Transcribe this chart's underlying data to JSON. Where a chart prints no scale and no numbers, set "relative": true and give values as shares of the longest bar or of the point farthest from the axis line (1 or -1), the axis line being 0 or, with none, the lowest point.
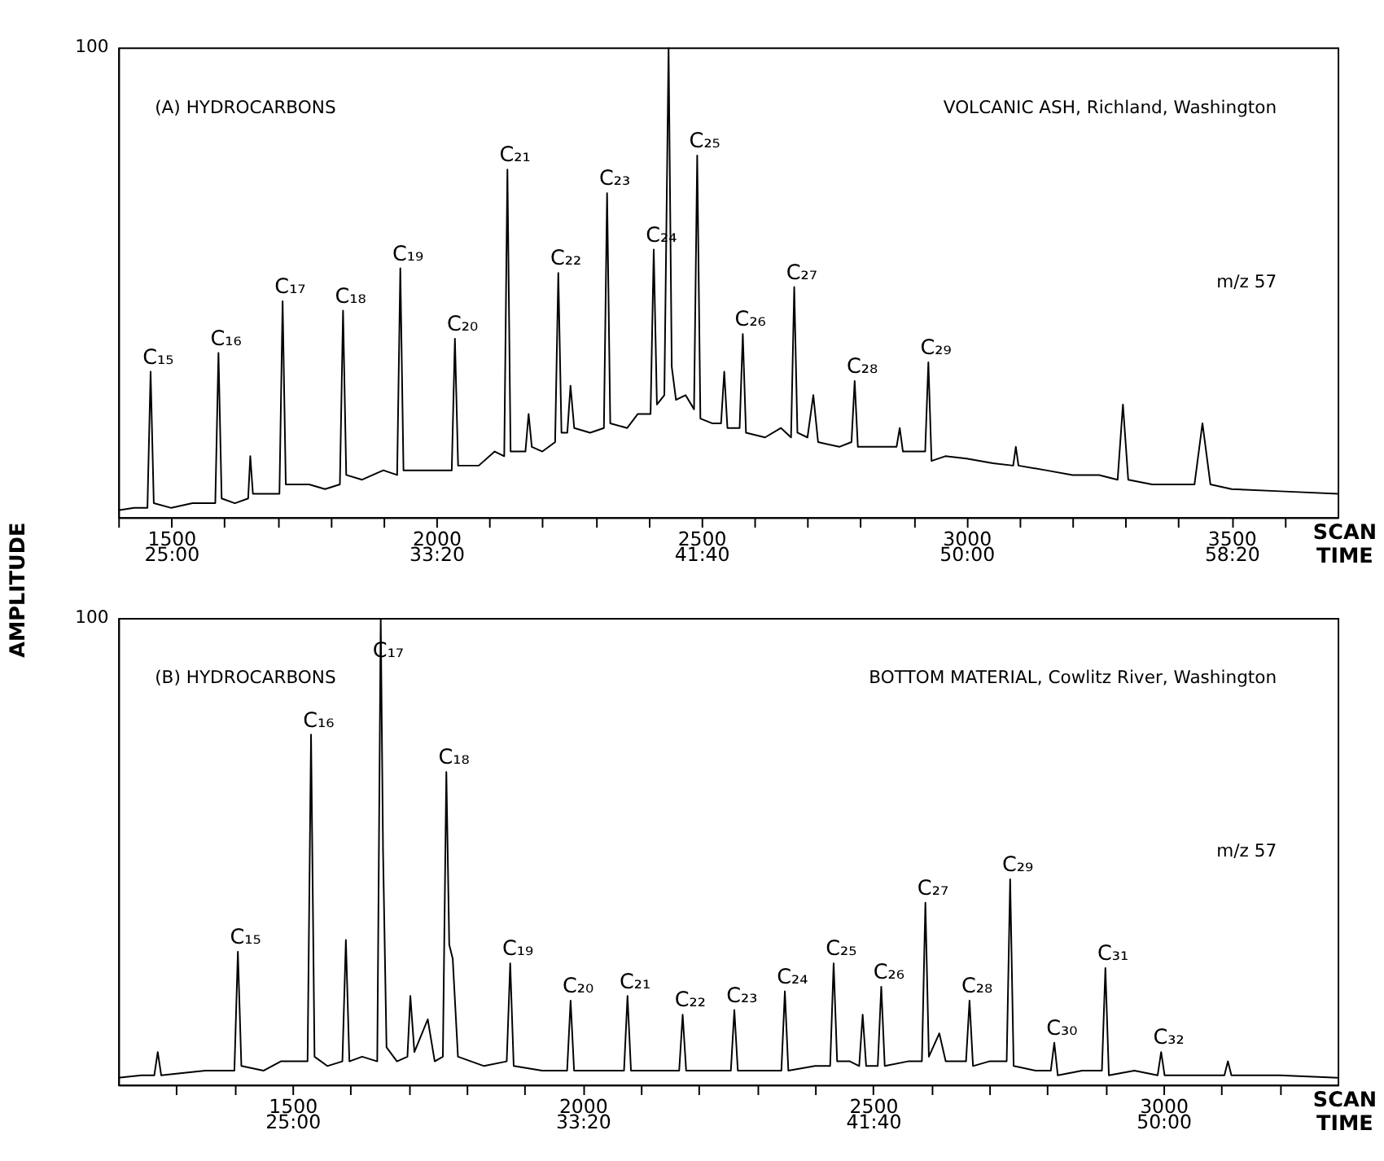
{
  "chart_data": [
    {
      "type": "line",
      "relative": true,
      "ylabel": "AMPLITUDE",
      "xlabel": "SCAN",
      "x2label": "TIME",
      "xlim": [
        1400,
        3700
      ],
      "x2lim": [
        1400,
        3700
      ],
      "xticks": [
        {
          "value": 1400,
          "label": null
        },
        1500,
        {
          "value": 1600,
          "label": null
        },
        {
          "value": 1700,
          "label": null
        },
        {
          "value": 1800,
          "label": null
        },
        {
          "value": 1900,
          "label": null
        },
        2000,
        {
          "value": 2100,
          "label": null
        },
        {
          "value": 2200,
          "label": null
        },
        {
          "value": 2300,
          "label": null
        },
        {
          "value": 2400,
          "label": null
        },
        2500,
        {
          "value": 2600,
          "label": null
        },
        {
          "value": 2700,
          "label": null
        },
        {
          "value": 2800,
          "label": null
        },
        {
          "value": 2900,
          "label": null
        },
        3000,
        {
          "value": 3100,
          "label": null
        },
        {
          "value": 3200,
          "label": null
        },
        {
          "value": 3300,
          "label": null
        },
        {
          "value": 3400,
          "label": null
        },
        3500,
        {
          "value": 3600,
          "label": null
        }
      ],
      "x2ticks": [
        {
          "value": 1500,
          "label": "25:00"
        },
        {
          "value": 2000,
          "label": "33:20"
        },
        {
          "value": 2500,
          "label": "41:40"
        },
        {
          "value": 3000,
          "label": "50:00"
        },
        {
          "value": 3500,
          "label": "58:20"
        }
      ],
      "series": [
        {
          "color": "#000000",
          "x": [
            1400,
            1430,
            1455,
            1461,
            1467,
            1500,
            1540,
            1583,
            1589,
            1595,
            1620,
            1645,
            1649,
            1654,
            1680,
            1704,
            1710,
            1716,
            1760,
            1790,
            1818,
            1824,
            1830,
            1860,
            1900,
            1926,
            1932,
            1938,
            1980,
            2029,
            2035,
            2041,
            2080,
            2110,
            2128,
            2134,
            2140,
            2168,
            2174,
            2180,
            2200,
            2224,
            2230,
            2236,
            2247,
            2253,
            2260,
            2290,
            2316,
            2322,
            2328,
            2360,
            2380,
            2404,
            2410,
            2416,
            2430,
            2438,
            2444,
            2452,
            2470,
            2486,
            2492,
            2498,
            2520,
            2537,
            2543,
            2549,
            2572,
            2578,
            2584,
            2620,
            2650,
            2669,
            2675,
            2681,
            2700,
            2711,
            2720,
            2760,
            2783,
            2789,
            2795,
            2840,
            2868,
            2874,
            2880,
            2922,
            2928,
            2934,
            2960,
            3000,
            3050,
            3088,
            3093,
            3098,
            3150,
            3200,
            3250,
            3285,
            3295,
            3305,
            3350,
            3380,
            3430,
            3445,
            3460,
            3500,
            3600,
            3700
          ],
          "values": [
            0.015,
            0.02,
            0.02,
            0.31,
            0.03,
            0.02,
            0.03,
            0.03,
            0.35,
            0.04,
            0.03,
            0.04,
            0.13,
            0.05,
            0.05,
            0.05,
            0.46,
            0.07,
            0.07,
            0.06,
            0.07,
            0.44,
            0.09,
            0.08,
            0.1,
            0.09,
            0.53,
            0.1,
            0.1,
            0.1,
            0.38,
            0.11,
            0.11,
            0.14,
            0.13,
            0.74,
            0.14,
            0.14,
            0.22,
            0.15,
            0.14,
            0.16,
            0.52,
            0.18,
            0.18,
            0.28,
            0.19,
            0.18,
            0.19,
            0.69,
            0.2,
            0.19,
            0.22,
            0.22,
            0.57,
            0.24,
            0.26,
            1.0,
            0.32,
            0.25,
            0.26,
            0.23,
            0.77,
            0.21,
            0.2,
            0.2,
            0.31,
            0.19,
            0.19,
            0.39,
            0.18,
            0.17,
            0.19,
            0.17,
            0.49,
            0.18,
            0.17,
            0.26,
            0.16,
            0.15,
            0.16,
            0.29,
            0.15,
            0.15,
            0.15,
            0.19,
            0.14,
            0.14,
            0.33,
            0.12,
            0.13,
            0.125,
            0.115,
            0.11,
            0.15,
            0.11,
            0.1,
            0.09,
            0.09,
            0.08,
            0.24,
            0.08,
            0.07,
            0.07,
            0.07,
            0.2,
            0.07,
            0.06,
            0.055,
            0.05
          ]
        }
      ],
      "annotations": [
        "(A) HYDROCARBONS",
        "VOLCANIC ASH, Richland, Washington",
        "m/z 57",
        "100",
        {
          "text": "C₁₅",
          "x": 1461,
          "y": 0.31
        },
        {
          "text": "C₁₆",
          "x": 1589,
          "y": 0.35
        },
        {
          "text": "C₁₇",
          "x": 1710,
          "y": 0.46
        },
        {
          "text": "C₁₈",
          "x": 1824,
          "y": 0.44
        },
        {
          "text": "C₁₉",
          "x": 1932,
          "y": 0.53
        },
        {
          "text": "C₂₀",
          "x": 2035,
          "y": 0.38
        },
        {
          "text": "C₂₁",
          "x": 2134,
          "y": 0.74
        },
        {
          "text": "C₂₂",
          "x": 2230,
          "y": 0.52
        },
        {
          "text": "C₂₃",
          "x": 2322,
          "y": 0.69
        },
        {
          "text": "C₂₄",
          "x": 2410,
          "y": 0.57
        },
        {
          "text": "C₂₅",
          "x": 2492,
          "y": 0.77
        },
        {
          "text": "C₂₆",
          "x": 2578,
          "y": 0.39
        },
        {
          "text": "C₂₇",
          "x": 2675,
          "y": 0.49
        },
        {
          "text": "C₂₈",
          "x": 2789,
          "y": 0.29
        },
        {
          "text": "C₂₉",
          "x": 2928,
          "y": 0.33
        }
      ]
    },
    {
      "type": "line",
      "relative": true,
      "xlabel": "SCAN",
      "x2label": "TIME",
      "xlim": [
        1200,
        3300
      ],
      "x2lim": [
        1200,
        3300
      ],
      "xticks": [
        {
          "value": 1300,
          "label": null
        },
        {
          "value": 1400,
          "label": null
        },
        1500,
        {
          "value": 1600,
          "label": null
        },
        {
          "value": 1700,
          "label": null
        },
        {
          "value": 1800,
          "label": null
        },
        {
          "value": 1900,
          "label": null
        },
        2000,
        {
          "value": 2100,
          "label": null
        },
        {
          "value": 2200,
          "label": null
        },
        {
          "value": 2300,
          "label": null
        },
        {
          "value": 2400,
          "label": null
        },
        2500,
        {
          "value": 2600,
          "label": null
        },
        {
          "value": 2700,
          "label": null
        },
        {
          "value": 2800,
          "label": null
        },
        {
          "value": 2900,
          "label": null
        },
        3000,
        {
          "value": 3100,
          "label": null
        },
        {
          "value": 3200,
          "label": null
        }
      ],
      "x2ticks": [
        {
          "value": 1500,
          "label": "25:00"
        },
        {
          "value": 2000,
          "label": "33:20"
        },
        {
          "value": 2500,
          "label": "41:40"
        },
        {
          "value": 3000,
          "label": "50:00"
        }
      ],
      "series": [
        {
          "color": "#000000",
          "x": [
            1200,
            1240,
            1262,
            1268,
            1274,
            1310,
            1350,
            1400,
            1406,
            1412,
            1450,
            1480,
            1526,
            1532,
            1538,
            1560,
            1586,
            1592,
            1598,
            1620,
            1646,
            1652,
            1656,
            1662,
            1680,
            1698,
            1703,
            1710,
            1733,
            1745,
            1759,
            1765,
            1770,
            1776,
            1785,
            1830,
            1869,
            1875,
            1881,
            1930,
            1973,
            1979,
            1985,
            2030,
            2071,
            2077,
            2083,
            2120,
            2166,
            2172,
            2178,
            2220,
            2255,
            2261,
            2267,
            2300,
            2342,
            2348,
            2354,
            2400,
            2426,
            2432,
            2438,
            2460,
            2476,
            2482,
            2488,
            2508,
            2514,
            2520,
            2560,
            2584,
            2590,
            2596,
            2614,
            2625,
            2660,
            2666,
            2672,
            2700,
            2730,
            2736,
            2742,
            2780,
            2806,
            2812,
            2818,
            2860,
            2894,
            2900,
            2906,
            2950,
            2990,
            2996,
            3002,
            3060,
            3105,
            3111,
            3117,
            3200,
            3300
          ],
          "values": [
            0.015,
            0.02,
            0.02,
            0.07,
            0.02,
            0.025,
            0.03,
            0.03,
            0.285,
            0.04,
            0.03,
            0.05,
            0.05,
            0.75,
            0.06,
            0.04,
            0.05,
            0.31,
            0.05,
            0.06,
            0.05,
            1.0,
            0.5,
            0.08,
            0.05,
            0.06,
            0.19,
            0.07,
            0.14,
            0.05,
            0.06,
            0.67,
            0.3,
            0.27,
            0.06,
            0.04,
            0.05,
            0.26,
            0.04,
            0.03,
            0.03,
            0.18,
            0.03,
            0.03,
            0.03,
            0.19,
            0.03,
            0.03,
            0.03,
            0.15,
            0.03,
            0.03,
            0.03,
            0.16,
            0.03,
            0.03,
            0.03,
            0.2,
            0.03,
            0.04,
            0.04,
            0.26,
            0.05,
            0.05,
            0.04,
            0.15,
            0.04,
            0.04,
            0.21,
            0.04,
            0.05,
            0.05,
            0.39,
            0.06,
            0.11,
            0.05,
            0.05,
            0.18,
            0.04,
            0.05,
            0.05,
            0.44,
            0.04,
            0.03,
            0.03,
            0.09,
            0.02,
            0.03,
            0.03,
            0.25,
            0.02,
            0.03,
            0.02,
            0.07,
            0.02,
            0.02,
            0.02,
            0.05,
            0.02,
            0.02,
            0.015
          ]
        }
      ],
      "annotations": [
        "(B) HYDROCARBONS",
        "BOTTOM MATERIAL, Cowlitz River, Washington",
        "m/z 57",
        "100",
        {
          "text": "C₁₅",
          "x": 1406,
          "y": 0.285
        },
        {
          "text": "C₁₆",
          "x": 1532,
          "y": 0.75
        },
        {
          "text": "C₁₇",
          "x": 1652,
          "y": 1.0
        },
        {
          "text": "C₁₈",
          "x": 1765,
          "y": 0.67
        },
        {
          "text": "C₁₉",
          "x": 1875,
          "y": 0.26
        },
        {
          "text": "C₂₀",
          "x": 1979,
          "y": 0.18
        },
        {
          "text": "C₂₁",
          "x": 2077,
          "y": 0.19
        },
        {
          "text": "C₂₂",
          "x": 2172,
          "y": 0.15
        },
        {
          "text": "C₂₃",
          "x": 2261,
          "y": 0.16
        },
        {
          "text": "C₂₄",
          "x": 2348,
          "y": 0.2
        },
        {
          "text": "C₂₅",
          "x": 2432,
          "y": 0.26
        },
        {
          "text": "C₂₆",
          "x": 2514,
          "y": 0.21
        },
        {
          "text": "C₂₇",
          "x": 2590,
          "y": 0.39
        },
        {
          "text": "C₂₈",
          "x": 2666,
          "y": 0.18
        },
        {
          "text": "C₂₉",
          "x": 2736,
          "y": 0.44
        },
        {
          "text": "C₃₀",
          "x": 2812,
          "y": 0.09
        },
        {
          "text": "C₃₁",
          "x": 2900,
          "y": 0.25
        },
        {
          "text": "C₃₂",
          "x": 2996,
          "y": 0.07
        }
      ]
    }
  ]
}
